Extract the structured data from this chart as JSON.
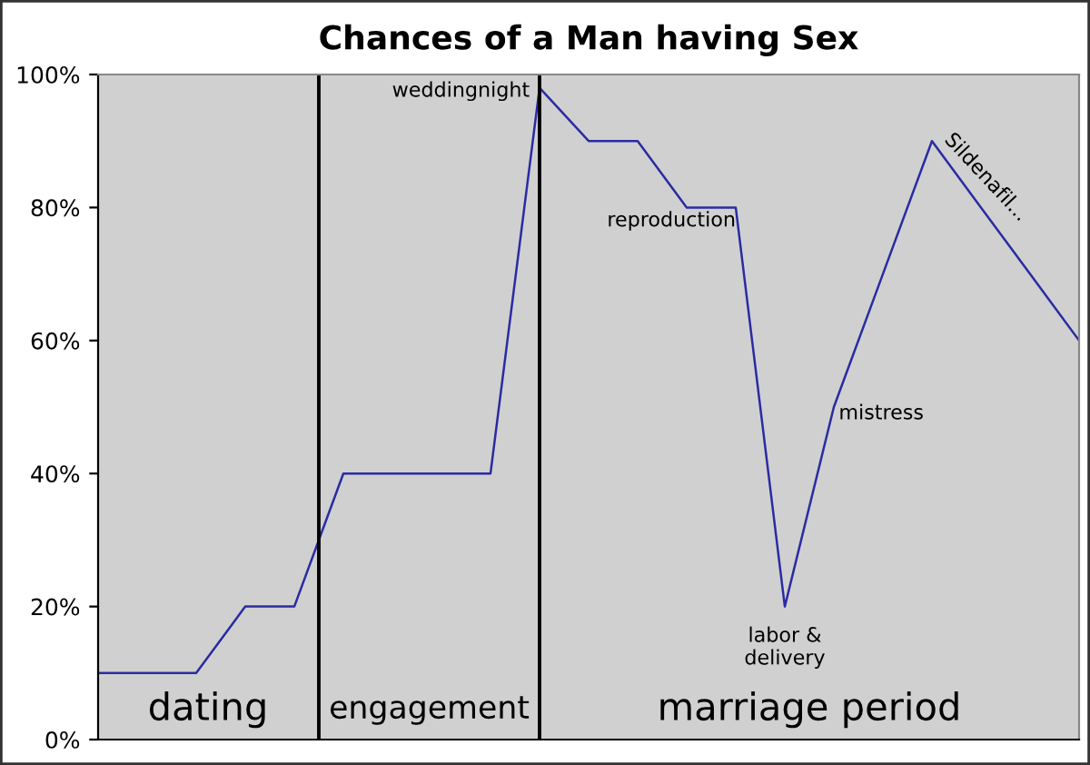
{
  "chart_data": {
    "type": "line",
    "title": "Chances of a Man having Sex",
    "categories": [
      null,
      null,
      null,
      null,
      null,
      null,
      null,
      null,
      null,
      null,
      null,
      null,
      null,
      null,
      null,
      null,
      null,
      null,
      null,
      null,
      null
    ],
    "series": [
      {
        "color": "#2b2ba3",
        "values": [
          10,
          10,
          10,
          20,
          20,
          40,
          40,
          40,
          40,
          98,
          90,
          90,
          80,
          80,
          20,
          50,
          70,
          90,
          80,
          70,
          60
        ]
      }
    ],
    "ylim": [
      0,
      100
    ],
    "yticks": [
      {
        "value": 0,
        "label": "0%"
      },
      {
        "value": 20,
        "label": "20%"
      },
      {
        "value": 40,
        "label": "40%"
      },
      {
        "value": 60,
        "label": "60%"
      },
      {
        "value": 80,
        "label": "80%"
      },
      {
        "value": 100,
        "label": "100%"
      }
    ],
    "tick_labels": "y",
    "grid": false,
    "legend": false,
    "marker": "none",
    "line_style": "solid",
    "annotations": [
      "dating",
      "engagement",
      "marriage period",
      "weddingnight",
      "reproduction",
      "labor &\ndelivery",
      "mistress",
      "Sildenafil..."
    ]
  }
}
